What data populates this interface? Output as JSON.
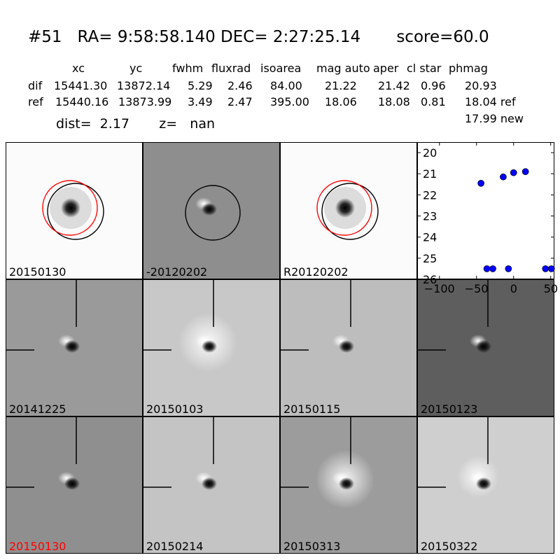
{
  "header": {
    "title": "#51   RA= 9:58:58.140 DEC= 2:27:25.14       score=60.0",
    "columns": [
      "xc",
      "yc",
      "fwhm",
      "fluxrad",
      "isoarea",
      "mag auto",
      "aper",
      "cl star",
      "phmag"
    ],
    "rows": [
      {
        "name": "dif",
        "values": [
          "15441.30",
          "13872.14",
          "5.29",
          "2.46",
          "84.00",
          "21.22",
          "21.42",
          "0.96",
          "20.93"
        ]
      },
      {
        "name": "ref",
        "values": [
          "15440.16",
          "13873.99",
          "3.49",
          "2.47",
          "395.00",
          "18.06",
          "18.08",
          "0.81",
          "18.04 ref"
        ]
      }
    ],
    "extra_phmag": "17.99 new",
    "dist_text": "dist=  2.17       z=   nan"
  },
  "panels": [
    {
      "label": "20150130",
      "bg": "#fbfbfb",
      "type": "star-circles",
      "label_color": "#000000"
    },
    {
      "label": "-20120202",
      "bg": "#8e8e8e",
      "type": "diff-circle",
      "label_color": "#000000"
    },
    {
      "label": "R20120202",
      "bg": "#fbfbfb",
      "type": "star-circles",
      "label_color": "#000000"
    },
    {
      "label": "20141225",
      "bg": "#9a9a9a",
      "type": "diff",
      "label_color": "#000000"
    },
    {
      "label": "20150103",
      "bg": "#c8c8c8",
      "type": "diff-halo",
      "label_color": "#000000"
    },
    {
      "label": "20150115",
      "bg": "#bdbdbd",
      "type": "diff",
      "label_color": "#000000"
    },
    {
      "label": "20150123",
      "bg": "#5e5e5e",
      "type": "diff",
      "label_color": "#000000"
    },
    {
      "label": "20150130",
      "bg": "#8f8f8f",
      "type": "diff",
      "label_color": "#ff0000"
    },
    {
      "label": "20150214",
      "bg": "#c4c4c4",
      "type": "diff",
      "label_color": "#000000"
    },
    {
      "label": "20150313",
      "bg": "#9c9c9c",
      "type": "diff-halo",
      "label_color": "#000000"
    },
    {
      "label": "20150322",
      "bg": "#cfcfcf",
      "type": "diff-soft",
      "label_color": "#000000"
    }
  ],
  "chart_data": {
    "type": "scatter",
    "ylim": [
      26,
      19.5
    ],
    "xlim": [
      -130,
      55
    ],
    "yticks": [
      "20",
      "21",
      "22",
      "23",
      "24",
      "25",
      "26"
    ],
    "xticks": [
      "−100",
      "−50",
      "0",
      "50"
    ],
    "points": [
      {
        "x": -44,
        "y": 21.45
      },
      {
        "x": -14,
        "y": 21.15
      },
      {
        "x": 0,
        "y": 20.95
      },
      {
        "x": 16,
        "y": 20.9
      },
      {
        "x": -36,
        "y": 25.5
      },
      {
        "x": -28,
        "y": 25.5
      },
      {
        "x": -7,
        "y": 25.5
      },
      {
        "x": 43,
        "y": 25.5
      },
      {
        "x": 51,
        "y": 25.5
      }
    ],
    "marker_color": "#0000ff"
  }
}
